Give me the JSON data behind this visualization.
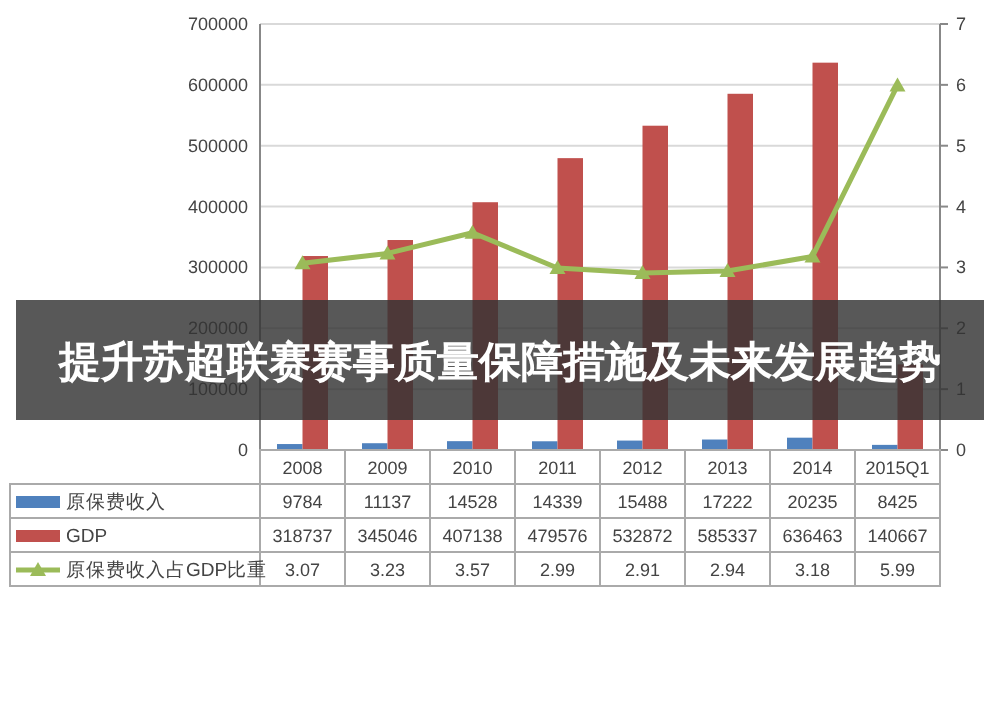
{
  "chart_data": {
    "type": "bar",
    "title": "提升苏超联赛赛事质量保障措施及未来发展趋势",
    "categories": [
      "2008",
      "2009",
      "2010",
      "2011",
      "2012",
      "2013",
      "2014",
      "2015Q1"
    ],
    "series": [
      {
        "name": "原保费收入",
        "color": "#4f81bd",
        "values": [
          9784,
          11137,
          14528,
          14339,
          15488,
          17222,
          20235,
          8425
        ]
      },
      {
        "name": "GDP",
        "color": "#c0504d",
        "values": [
          318737,
          345046,
          407138,
          479576,
          532872,
          585337,
          636463,
          140667
        ]
      },
      {
        "name": "原保费收入占GDP比重",
        "type": "line",
        "axis": "y2",
        "marker": "triangle",
        "color": "#9bbb59",
        "values": [
          3.07,
          3.23,
          3.57,
          2.99,
          2.91,
          2.94,
          3.18,
          5.99
        ]
      }
    ],
    "ylim": [
      0,
      700000
    ],
    "yticks": [
      0,
      100000,
      200000,
      300000,
      400000,
      500000,
      600000,
      700000
    ],
    "y2lim": [
      0,
      7
    ],
    "y2ticks": [
      0,
      1,
      2,
      3,
      4,
      5,
      6,
      7
    ],
    "grid": "y",
    "legend": "bottom",
    "data_labels": true
  }
}
